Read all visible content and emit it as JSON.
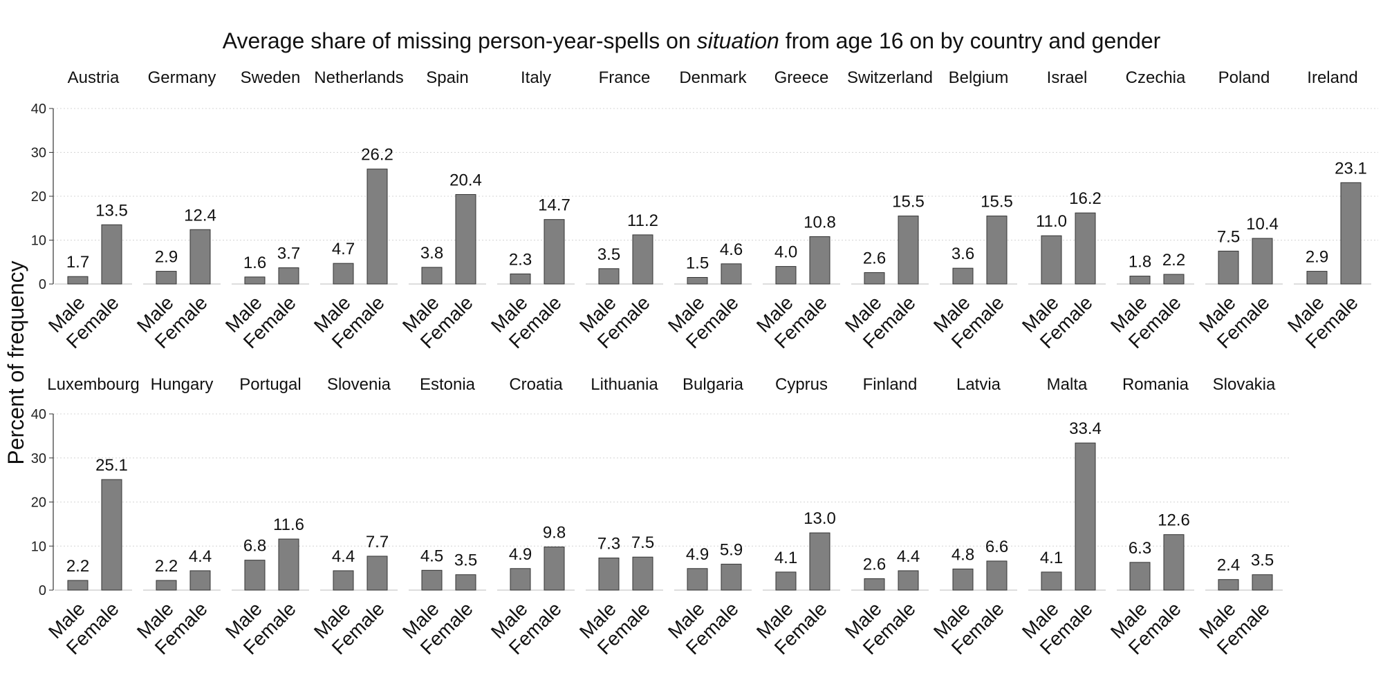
{
  "chart_data": {
    "type": "bar",
    "title_parts": [
      "Average share of missing person-year-spells on ",
      "situation",
      " from age 16 on by country and gender"
    ],
    "ylabel": "Percent of frequency",
    "xlabel": "",
    "ylim": [
      0,
      40
    ],
    "yticks": [
      "0",
      "10",
      "20",
      "30",
      "40"
    ],
    "categories": [
      "Male",
      "Female"
    ],
    "bar_color": "#808080",
    "grid": "horizontal dotted",
    "facets": [
      {
        "country": "Austria",
        "values": [
          1.7,
          13.5
        ],
        "labels": [
          "1.7",
          "13.5"
        ]
      },
      {
        "country": "Germany",
        "values": [
          2.9,
          12.4
        ],
        "labels": [
          "2.9",
          "12.4"
        ]
      },
      {
        "country": "Sweden",
        "values": [
          1.6,
          3.7
        ],
        "labels": [
          "1.6",
          "3.7"
        ]
      },
      {
        "country": "Netherlands",
        "values": [
          4.7,
          26.2
        ],
        "labels": [
          "4.7",
          "26.2"
        ]
      },
      {
        "country": "Spain",
        "values": [
          3.8,
          20.4
        ],
        "labels": [
          "3.8",
          "20.4"
        ]
      },
      {
        "country": "Italy",
        "values": [
          2.3,
          14.7
        ],
        "labels": [
          "2.3",
          "14.7"
        ]
      },
      {
        "country": "France",
        "values": [
          3.5,
          11.2
        ],
        "labels": [
          "3.5",
          "11.2"
        ]
      },
      {
        "country": "Denmark",
        "values": [
          1.5,
          4.6
        ],
        "labels": [
          "1.5",
          "4.6"
        ]
      },
      {
        "country": "Greece",
        "values": [
          4.0,
          10.8
        ],
        "labels": [
          "4.0",
          "10.8"
        ]
      },
      {
        "country": "Switzerland",
        "values": [
          2.6,
          15.5
        ],
        "labels": [
          "2.6",
          "15.5"
        ]
      },
      {
        "country": "Belgium",
        "values": [
          3.6,
          15.5
        ],
        "labels": [
          "3.6",
          "15.5"
        ]
      },
      {
        "country": "Israel",
        "values": [
          11.0,
          16.2
        ],
        "labels": [
          "11.0",
          "16.2"
        ]
      },
      {
        "country": "Czechia",
        "values": [
          1.8,
          2.2
        ],
        "labels": [
          "1.8",
          "2.2"
        ]
      },
      {
        "country": "Poland",
        "values": [
          7.5,
          10.4
        ],
        "labels": [
          "7.5",
          "10.4"
        ]
      },
      {
        "country": "Ireland",
        "values": [
          2.9,
          23.1
        ],
        "labels": [
          "2.9",
          "23.1"
        ]
      },
      {
        "country": "Luxembourg",
        "values": [
          2.2,
          25.1
        ],
        "labels": [
          "2.2",
          "25.1"
        ]
      },
      {
        "country": "Hungary",
        "values": [
          2.2,
          4.4
        ],
        "labels": [
          "2.2",
          "4.4"
        ]
      },
      {
        "country": "Portugal",
        "values": [
          6.8,
          11.6
        ],
        "labels": [
          "6.8",
          "11.6"
        ]
      },
      {
        "country": "Slovenia",
        "values": [
          4.4,
          7.7
        ],
        "labels": [
          "4.4",
          "7.7"
        ]
      },
      {
        "country": "Estonia",
        "values": [
          4.5,
          3.5
        ],
        "labels": [
          "4.5",
          "3.5"
        ]
      },
      {
        "country": "Croatia",
        "values": [
          4.9,
          9.8
        ],
        "labels": [
          "4.9",
          "9.8"
        ]
      },
      {
        "country": "Lithuania",
        "values": [
          7.3,
          7.5
        ],
        "labels": [
          "7.3",
          "7.5"
        ]
      },
      {
        "country": "Bulgaria",
        "values": [
          4.9,
          5.9
        ],
        "labels": [
          "4.9",
          "5.9"
        ]
      },
      {
        "country": "Cyprus",
        "values": [
          4.1,
          13.0
        ],
        "labels": [
          "4.1",
          "13.0"
        ]
      },
      {
        "country": "Finland",
        "values": [
          2.6,
          4.4
        ],
        "labels": [
          "2.6",
          "4.4"
        ]
      },
      {
        "country": "Latvia",
        "values": [
          4.8,
          6.6
        ],
        "labels": [
          "4.8",
          "6.6"
        ]
      },
      {
        "country": "Malta",
        "values": [
          4.1,
          33.4
        ],
        "labels": [
          "4.1",
          "33.4"
        ]
      },
      {
        "country": "Romania",
        "values": [
          6.3,
          12.6
        ],
        "labels": [
          "6.3",
          "12.6"
        ]
      },
      {
        "country": "Slovakia",
        "values": [
          2.4,
          3.5
        ],
        "labels": [
          "2.4",
          "3.5"
        ]
      }
    ]
  }
}
